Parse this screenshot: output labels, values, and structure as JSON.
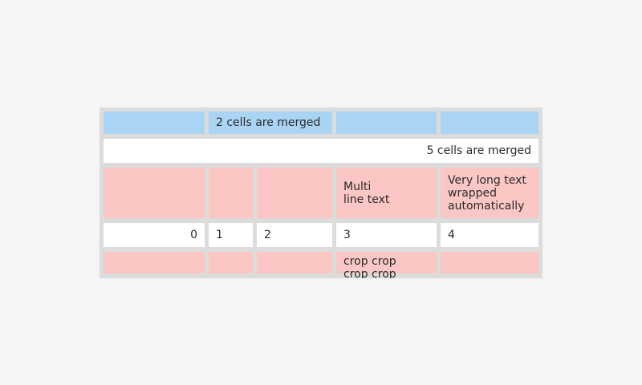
{
  "page": {
    "background_color": "#f5f5f5"
  },
  "table": {
    "colors": {
      "frame": "#dcdcdc",
      "blue_cell": "#a9d4f3",
      "pink_cell": "#fac7c4",
      "white_cell": "#ffffff",
      "text": "#2b2b2b"
    },
    "row1": {
      "merged_text": "2 cells are merged"
    },
    "row2": {
      "merged_text": "5 cells are merged"
    },
    "row3": {
      "col3_text": "Multi\nline text",
      "col4_text": "Very long text wrapped automatically"
    },
    "row4": {
      "values": [
        "0",
        "1",
        "2",
        "3",
        "4"
      ]
    },
    "row5": {
      "col3_text": "crop crop crop crop"
    }
  }
}
